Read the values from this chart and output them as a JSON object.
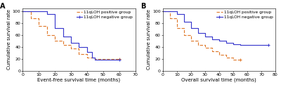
{
  "panel_A": {
    "label": "A",
    "xlabel": "Event-free survival time (months)",
    "ylabel": "Cumulative survival rate",
    "xlim": [
      0,
      70
    ],
    "ylim": [
      0,
      105
    ],
    "xticks": [
      0,
      10,
      20,
      30,
      40,
      50,
      60,
      70
    ],
    "yticks": [
      0,
      20,
      40,
      60,
      80,
      100
    ],
    "positive_x": [
      0,
      5,
      5,
      10,
      10,
      15,
      15,
      20,
      20,
      25,
      25,
      30,
      30,
      35,
      35,
      40,
      40,
      45,
      45,
      50,
      50,
      60
    ],
    "positive_y": [
      100,
      100,
      88,
      88,
      75,
      75,
      60,
      60,
      50,
      50,
      43,
      43,
      37,
      37,
      28,
      28,
      22,
      22,
      20,
      20,
      20,
      20
    ],
    "negative_x": [
      0,
      15,
      15,
      20,
      20,
      25,
      25,
      30,
      30,
      35,
      35,
      40,
      40,
      43,
      43,
      45,
      45,
      60
    ],
    "negative_y": [
      100,
      100,
      95,
      95,
      72,
      72,
      57,
      57,
      47,
      47,
      40,
      40,
      32,
      32,
      22,
      22,
      18,
      18
    ],
    "positive_color": "#e07b2e",
    "negative_color": "#3b3bcd",
    "legend_loc": "upper right",
    "positive_censor_x": [
      60
    ],
    "positive_censor_y": [
      20
    ],
    "negative_censor_x": [
      60
    ],
    "negative_censor_y": [
      18
    ]
  },
  "panel_B": {
    "label": "B",
    "xlabel": "Overall survival time (months)",
    "ylabel": "Cumulative survival rate",
    "xlim": [
      0,
      80
    ],
    "ylim": [
      0,
      105
    ],
    "xticks": [
      0,
      10,
      20,
      30,
      40,
      50,
      60,
      70,
      80
    ],
    "yticks": [
      0,
      20,
      40,
      60,
      80,
      100
    ],
    "positive_x": [
      0,
      5,
      5,
      10,
      10,
      15,
      15,
      20,
      20,
      25,
      25,
      30,
      30,
      35,
      35,
      40,
      40,
      45,
      45,
      50,
      50,
      55
    ],
    "positive_y": [
      100,
      100,
      88,
      88,
      72,
      72,
      60,
      60,
      50,
      50,
      43,
      43,
      38,
      38,
      33,
      33,
      27,
      27,
      22,
      22,
      18,
      18
    ],
    "negative_x": [
      0,
      10,
      10,
      15,
      15,
      20,
      20,
      25,
      25,
      30,
      30,
      35,
      35,
      40,
      40,
      45,
      45,
      50,
      50,
      55,
      55,
      75
    ],
    "negative_y": [
      100,
      100,
      95,
      95,
      82,
      82,
      72,
      72,
      63,
      63,
      57,
      57,
      53,
      53,
      50,
      50,
      47,
      47,
      45,
      45,
      43,
      43
    ],
    "positive_color": "#e07b2e",
    "negative_color": "#3b3bcd",
    "legend_loc": "upper right",
    "positive_censor_x": [
      55
    ],
    "positive_censor_y": [
      18
    ],
    "negative_censor_x": [
      75
    ],
    "negative_censor_y": [
      43
    ]
  },
  "legend_positive": "11qLOH positive group",
  "legend_negative": "11qLOH negative group",
  "background_color": "#ffffff",
  "tick_fontsize": 4.5,
  "label_fontsize": 5.0,
  "legend_fontsize": 4.2,
  "panel_label_fontsize": 7
}
